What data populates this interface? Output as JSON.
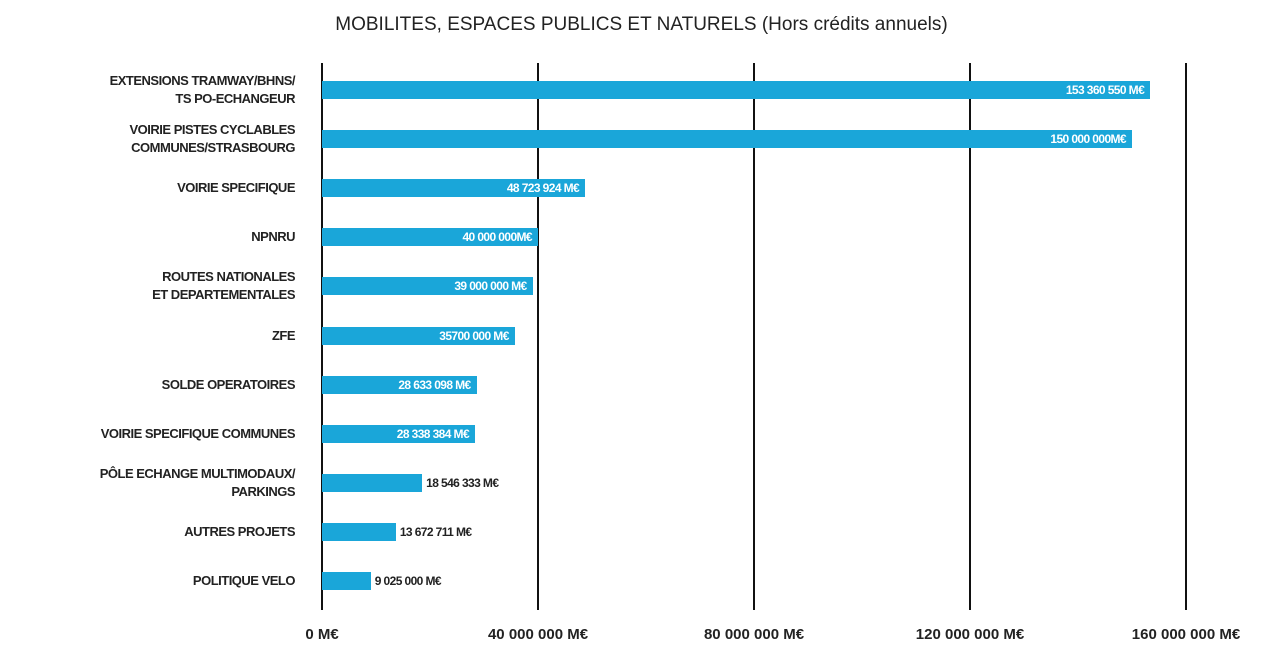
{
  "chart_data": {
    "type": "barh",
    "title": "MOBILITES, ESPACES PUBLICS ET NATURELS (Hors crédits annuels)",
    "categories": [
      "EXTENSIONS TRAMWAY/BHNS/\nTS PO-ECHANGEUR",
      "VOIRIE PISTES CYCLABLES\nCOMMUNES/STRASBOURG",
      "VOIRIE SPECIFIQUE",
      "NPNRU",
      "ROUTES NATIONALES\nET DEPARTEMENTALES",
      "ZFE",
      "SOLDE OPERATOIRES",
      "VOIRIE SPECIFIQUE COMMUNES",
      "PÔLE ECHANGE MULTIMODAUX/\nPARKINGS",
      "AUTRES PROJETS",
      "POLITIQUE VELO"
    ],
    "values": [
      153360550,
      150000000,
      48723924,
      40000000,
      39000000,
      35700000,
      28633098,
      28338384,
      18546333,
      13672711,
      9025000
    ],
    "value_labels": [
      "153 360 550 M€",
      "150 000 000M€",
      "48 723 924 M€",
      "40 000 000M€",
      "39 000 000 M€",
      "35700 000 M€",
      "28 633 098 M€",
      "28 338 384 M€",
      "18 546 333 M€",
      "13 672 711 M€",
      "9 025 000 M€"
    ],
    "color": "#1aa6d9",
    "xlim": [
      0,
      160000000
    ],
    "xticks": [
      {
        "value": 0,
        "label": "0 M€"
      },
      {
        "value": 40000000,
        "label": "40 000 000 M€"
      },
      {
        "value": 80000000,
        "label": "80 000 000 M€"
      },
      {
        "value": 120000000,
        "label": "120 000 000 M€"
      },
      {
        "value": 160000000,
        "label": "160 000 000 M€"
      }
    ],
    "grid": true
  }
}
